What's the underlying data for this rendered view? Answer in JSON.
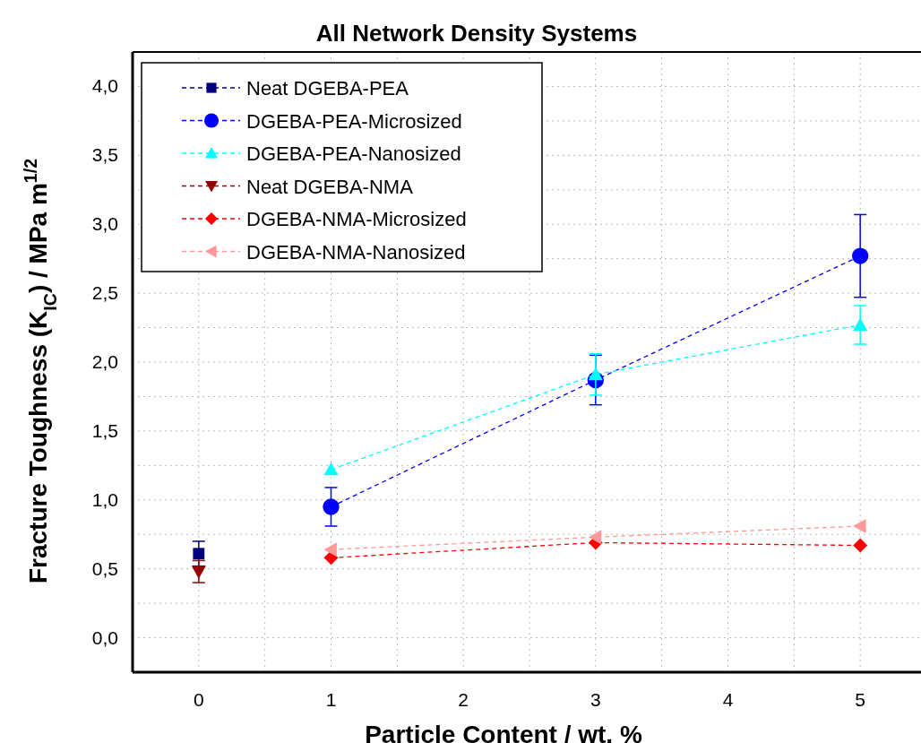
{
  "chart_data": {
    "type": "line",
    "title": "All Network Density Systems",
    "xlabel": "Particle Content / wt. %",
    "ylabel": "Fracture Toughness (K$_{IC}$) / MPa m$^{1/2}$",
    "xlim": [
      -0.5,
      5.5
    ],
    "xticks": [
      0,
      {
        "value": 0.5,
        "label": null
      },
      1,
      {
        "value": 1.5,
        "label": null
      },
      2,
      {
        "value": 2.5,
        "label": null
      },
      3,
      {
        "value": 3.5,
        "label": null
      },
      4,
      {
        "value": 4.5,
        "label": null
      },
      5
    ],
    "ylim": [
      -0.25,
      4.25
    ],
    "yticks": [
      {
        "value": 0,
        "label": "0,0"
      },
      {
        "value": 0.25,
        "label": null
      },
      {
        "value": 0.5,
        "label": "0,5"
      },
      {
        "value": 0.75,
        "label": null
      },
      {
        "value": 1,
        "label": "1,0"
      },
      {
        "value": 1.25,
        "label": null
      },
      {
        "value": 1.5,
        "label": "1,5"
      },
      {
        "value": 1.75,
        "label": null
      },
      {
        "value": 2,
        "label": "2,0"
      },
      {
        "value": 2.25,
        "label": null
      },
      {
        "value": 2.5,
        "label": "2,5"
      },
      {
        "value": 2.75,
        "label": null
      },
      {
        "value": 3,
        "label": "3,0"
      },
      {
        "value": 3.25,
        "label": null
      },
      {
        "value": 3.5,
        "label": "3,5"
      },
      {
        "value": 3.75,
        "label": null
      },
      {
        "value": 4,
        "label": "4,0"
      }
    ],
    "grid": true,
    "legend": "top left",
    "line_style": "dashed",
    "series": [
      {
        "name": "Neat DGEBA-PEA",
        "color": "#000080",
        "marker": "square",
        "x": [
          0
        ],
        "values": [
          0.61
        ],
        "errors": [
          0.09
        ]
      },
      {
        "name": "DGEBA-PEA-Microsized",
        "color": "#0000ff",
        "marker": "circle",
        "x": [
          1,
          3,
          5
        ],
        "values": [
          0.95,
          1.87,
          2.77
        ],
        "errors": [
          0.14,
          0.18,
          0.3
        ]
      },
      {
        "name": "DGEBA-PEA-Nanosized",
        "color": "#00ffff",
        "marker": "triangle",
        "x": [
          1,
          3,
          5
        ],
        "values": [
          1.22,
          1.91,
          2.27
        ],
        "errors": [
          null,
          0.15,
          0.14
        ]
      },
      {
        "name": "Neat DGEBA-NMA",
        "color": "#990000",
        "marker": "triangle-down",
        "x": [
          0
        ],
        "values": [
          0.48
        ],
        "errors": [
          0.08
        ]
      },
      {
        "name": "DGEBA-NMA-Microsized",
        "color": "#ff0000",
        "marker": "diamond",
        "x": [
          1,
          3,
          5
        ],
        "values": [
          0.58,
          0.69,
          0.67
        ]
      },
      {
        "name": "DGEBA-NMA-Nanosized",
        "color": "#ff9999",
        "marker": "triangle-left",
        "x": [
          1,
          3,
          5
        ],
        "values": [
          0.64,
          0.73,
          0.81
        ]
      }
    ]
  }
}
